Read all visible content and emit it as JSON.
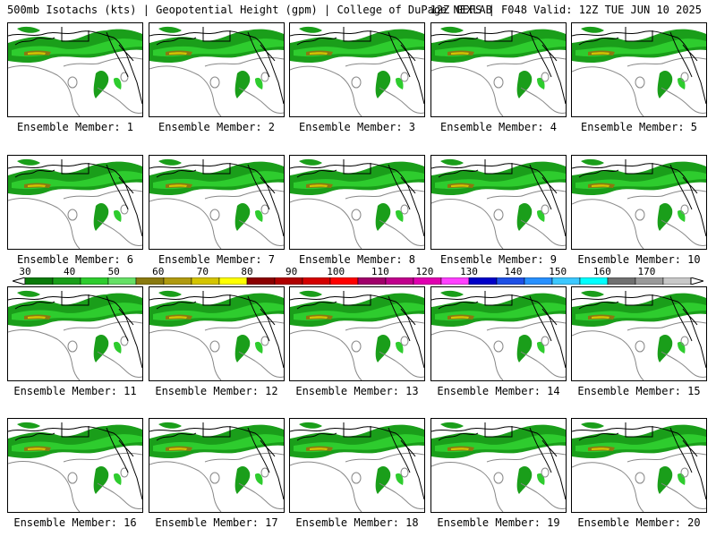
{
  "header": {
    "left_title": "500mb Isotachs (kts) | Geopotential Height (gpm) | College of DuPage NEXLAB",
    "right_title": "12Z GEFS | F048 Valid: 12Z TUE JUN 10 2025"
  },
  "members": [
    {
      "label": "Ensemble Member: 1"
    },
    {
      "label": "Ensemble Member: 2"
    },
    {
      "label": "Ensemble Member: 3"
    },
    {
      "label": "Ensemble Member: 4"
    },
    {
      "label": "Ensemble Member: 5"
    },
    {
      "label": "Ensemble Member: 6"
    },
    {
      "label": "Ensemble Member: 7"
    },
    {
      "label": "Ensemble Member: 8"
    },
    {
      "label": "Ensemble Member: 9"
    },
    {
      "label": "Ensemble Member: 10"
    },
    {
      "label": "Ensemble Member: 11"
    },
    {
      "label": "Ensemble Member: 12"
    },
    {
      "label": "Ensemble Member: 13"
    },
    {
      "label": "Ensemble Member: 14"
    },
    {
      "label": "Ensemble Member: 15"
    },
    {
      "label": "Ensemble Member: 16"
    },
    {
      "label": "Ensemble Member: 17"
    },
    {
      "label": "Ensemble Member: 18"
    },
    {
      "label": "Ensemble Member: 19"
    },
    {
      "label": "Ensemble Member: 20"
    }
  ],
  "colorbar": {
    "tick_labels": [
      "30",
      "40",
      "50",
      "60",
      "70",
      "80",
      "90",
      "100",
      "110",
      "120",
      "130",
      "140",
      "150",
      "160",
      "170"
    ],
    "colors": [
      "#0a7a0a",
      "#1a9e1a",
      "#2ecc2e",
      "#66e066",
      "#8a7a10",
      "#b09a10",
      "#d4c400",
      "#ffff00",
      "#8b0000",
      "#b00000",
      "#d40000",
      "#ff0000",
      "#a0006a",
      "#c0008c",
      "#e000b0",
      "#ff40ff",
      "#0000c8",
      "#1e50e6",
      "#2890ff",
      "#3cc8ff",
      "#00ffff",
      "#707070",
      "#9a9a9a",
      "#c8c8c8"
    ]
  }
}
